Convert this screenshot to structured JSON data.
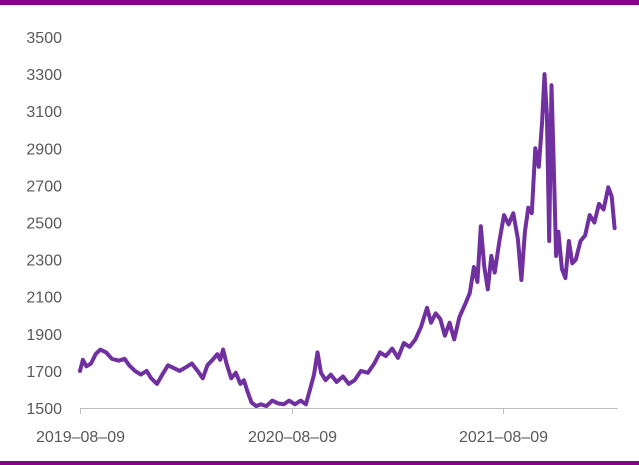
{
  "chart_data": {
    "type": "line",
    "title": "",
    "xlabel": "",
    "ylabel": "",
    "ylim": [
      1500,
      3500
    ],
    "yticks": [
      1500,
      1700,
      1900,
      2100,
      2300,
      2500,
      2700,
      2900,
      3100,
      3300,
      3500
    ],
    "xticks": [
      "2019-08-09",
      "2020-08-09",
      "2021-08-09"
    ],
    "xlabels_display": [
      "2019–08–09",
      "2020–08–09",
      "2021–08–09"
    ],
    "xlim": [
      "2019-08-09",
      "2022-03-15"
    ],
    "grid": false,
    "legend": "none",
    "colors": {
      "line": "#7030a0",
      "accent": "#8b008b"
    },
    "series": [
      {
        "points": [
          [
            "2019-08-09",
            1700
          ],
          [
            "2019-08-14",
            1760
          ],
          [
            "2019-08-20",
            1725
          ],
          [
            "2019-08-28",
            1740
          ],
          [
            "2019-09-05",
            1790
          ],
          [
            "2019-09-13",
            1815
          ],
          [
            "2019-09-23",
            1800
          ],
          [
            "2019-10-03",
            1765
          ],
          [
            "2019-10-15",
            1755
          ],
          [
            "2019-10-25",
            1765
          ],
          [
            "2019-11-02",
            1730
          ],
          [
            "2019-11-12",
            1700
          ],
          [
            "2019-11-22",
            1680
          ],
          [
            "2019-12-02",
            1700
          ],
          [
            "2019-12-10",
            1660
          ],
          [
            "2019-12-20",
            1630
          ],
          [
            "2019-12-29",
            1680
          ],
          [
            "2020-01-08",
            1730
          ],
          [
            "2020-01-18",
            1715
          ],
          [
            "2020-01-28",
            1700
          ],
          [
            "2020-02-08",
            1720
          ],
          [
            "2020-02-18",
            1740
          ],
          [
            "2020-02-28",
            1700
          ],
          [
            "2020-03-08",
            1660
          ],
          [
            "2020-03-16",
            1730
          ],
          [
            "2020-03-25",
            1760
          ],
          [
            "2020-04-02",
            1790
          ],
          [
            "2020-04-07",
            1760
          ],
          [
            "2020-04-12",
            1815
          ],
          [
            "2020-04-18",
            1740
          ],
          [
            "2020-04-26",
            1660
          ],
          [
            "2020-05-04",
            1690
          ],
          [
            "2020-05-12",
            1630
          ],
          [
            "2020-05-18",
            1650
          ],
          [
            "2020-05-24",
            1590
          ],
          [
            "2020-05-31",
            1530
          ],
          [
            "2020-06-08",
            1510
          ],
          [
            "2020-06-16",
            1520
          ],
          [
            "2020-06-26",
            1510
          ],
          [
            "2020-07-06",
            1540
          ],
          [
            "2020-07-16",
            1525
          ],
          [
            "2020-07-26",
            1520
          ],
          [
            "2020-08-04",
            1540
          ],
          [
            "2020-08-14",
            1520
          ],
          [
            "2020-08-24",
            1540
          ],
          [
            "2020-09-02",
            1520
          ],
          [
            "2020-09-10",
            1610
          ],
          [
            "2020-09-16",
            1680
          ],
          [
            "2020-09-22",
            1800
          ],
          [
            "2020-09-28",
            1690
          ],
          [
            "2020-10-06",
            1650
          ],
          [
            "2020-10-15",
            1680
          ],
          [
            "2020-10-25",
            1640
          ],
          [
            "2020-11-05",
            1670
          ],
          [
            "2020-11-15",
            1630
          ],
          [
            "2020-11-25",
            1650
          ],
          [
            "2020-12-06",
            1700
          ],
          [
            "2020-12-18",
            1690
          ],
          [
            "2020-12-29",
            1740
          ],
          [
            "2021-01-08",
            1800
          ],
          [
            "2021-01-18",
            1780
          ],
          [
            "2021-01-29",
            1820
          ],
          [
            "2021-02-08",
            1770
          ],
          [
            "2021-02-18",
            1850
          ],
          [
            "2021-02-28",
            1830
          ],
          [
            "2021-03-10",
            1870
          ],
          [
            "2021-03-20",
            1940
          ],
          [
            "2021-03-30",
            2040
          ],
          [
            "2021-04-06",
            1960
          ],
          [
            "2021-04-14",
            2010
          ],
          [
            "2021-04-22",
            1980
          ],
          [
            "2021-04-30",
            1890
          ],
          [
            "2021-05-08",
            1960
          ],
          [
            "2021-05-16",
            1870
          ],
          [
            "2021-05-25",
            1990
          ],
          [
            "2021-06-04",
            2060
          ],
          [
            "2021-06-12",
            2120
          ],
          [
            "2021-06-19",
            2260
          ],
          [
            "2021-06-25",
            2180
          ],
          [
            "2021-07-01",
            2480
          ],
          [
            "2021-07-07",
            2260
          ],
          [
            "2021-07-13",
            2140
          ],
          [
            "2021-07-19",
            2320
          ],
          [
            "2021-07-25",
            2230
          ],
          [
            "2021-08-02",
            2400
          ],
          [
            "2021-08-10",
            2540
          ],
          [
            "2021-08-18",
            2490
          ],
          [
            "2021-08-26",
            2550
          ],
          [
            "2021-09-03",
            2410
          ],
          [
            "2021-09-09",
            2190
          ],
          [
            "2021-09-15",
            2450
          ],
          [
            "2021-09-21",
            2580
          ],
          [
            "2021-09-27",
            2550
          ],
          [
            "2021-10-03",
            2900
          ],
          [
            "2021-10-09",
            2800
          ],
          [
            "2021-10-15",
            3050
          ],
          [
            "2021-10-19",
            3300
          ],
          [
            "2021-10-23",
            3080
          ],
          [
            "2021-10-27",
            2400
          ],
          [
            "2021-10-31",
            3240
          ],
          [
            "2021-11-04",
            2800
          ],
          [
            "2021-11-08",
            2320
          ],
          [
            "2021-11-12",
            2450
          ],
          [
            "2021-11-18",
            2250
          ],
          [
            "2021-11-24",
            2200
          ],
          [
            "2021-11-30",
            2400
          ],
          [
            "2021-12-06",
            2280
          ],
          [
            "2021-12-12",
            2300
          ],
          [
            "2021-12-20",
            2400
          ],
          [
            "2021-12-28",
            2430
          ],
          [
            "2022-01-05",
            2540
          ],
          [
            "2022-01-13",
            2500
          ],
          [
            "2022-01-21",
            2600
          ],
          [
            "2022-01-29",
            2570
          ],
          [
            "2022-02-06",
            2690
          ],
          [
            "2022-02-12",
            2640
          ],
          [
            "2022-02-17",
            2470
          ]
        ]
      }
    ]
  }
}
